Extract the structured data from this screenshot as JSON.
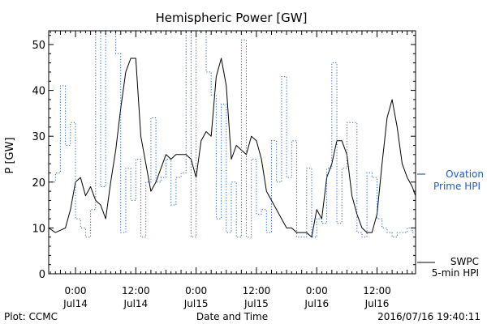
{
  "chart_data": {
    "type": "line",
    "title": "Hemispheric Power [GW]",
    "xlabel": "Date and Time",
    "ylabel": "P [GW]",
    "ylim": [
      0,
      53
    ],
    "xlim": [
      "2016-07-13 18:40",
      "2016-07-16 19:40"
    ],
    "yticks": [
      0,
      10,
      20,
      30,
      40,
      50
    ],
    "xticks": [
      {
        "at": "2016-07-14 00:00",
        "time": "0:00",
        "date": "Jul14"
      },
      {
        "at": "2016-07-14 12:00",
        "time": "12:00",
        "date": "Jul14"
      },
      {
        "at": "2016-07-15 00:00",
        "time": "0:00",
        "date": "Jul15"
      },
      {
        "at": "2016-07-15 12:00",
        "time": "12:00",
        "date": "Jul15"
      },
      {
        "at": "2016-07-16 00:00",
        "time": "0:00",
        "date": "Jul16"
      },
      {
        "at": "2016-07-16 12:00",
        "time": "12:00",
        "date": "Jul16"
      }
    ],
    "grid": false,
    "series": [
      {
        "name": "SWPC 5-min HPI",
        "style": "solid",
        "color": "#000000",
        "x": [
          "2016-07-13 18:40",
          "2016-07-13 20:00",
          "2016-07-13 22:00",
          "2016-07-13 23:00",
          "2016-07-14 00:00",
          "2016-07-14 01:00",
          "2016-07-14 02:00",
          "2016-07-14 03:00",
          "2016-07-14 04:00",
          "2016-07-14 05:00",
          "2016-07-14 06:00",
          "2016-07-14 07:00",
          "2016-07-14 08:00",
          "2016-07-14 09:00",
          "2016-07-14 10:00",
          "2016-07-14 11:00",
          "2016-07-14 12:00",
          "2016-07-14 13:00",
          "2016-07-14 14:00",
          "2016-07-14 15:00",
          "2016-07-14 16:00",
          "2016-07-14 17:00",
          "2016-07-14 18:00",
          "2016-07-14 19:00",
          "2016-07-14 20:00",
          "2016-07-14 21:00",
          "2016-07-14 22:00",
          "2016-07-14 23:00",
          "2016-07-15 00:00",
          "2016-07-15 01:00",
          "2016-07-15 02:00",
          "2016-07-15 03:00",
          "2016-07-15 04:00",
          "2016-07-15 05:00",
          "2016-07-15 06:00",
          "2016-07-15 07:00",
          "2016-07-15 08:00",
          "2016-07-15 09:00",
          "2016-07-15 10:00",
          "2016-07-15 11:00",
          "2016-07-15 12:00",
          "2016-07-15 13:00",
          "2016-07-15 14:00",
          "2016-07-15 15:00",
          "2016-07-15 16:00",
          "2016-07-15 17:00",
          "2016-07-15 18:00",
          "2016-07-15 19:00",
          "2016-07-15 20:00",
          "2016-07-15 21:00",
          "2016-07-15 22:00",
          "2016-07-15 23:00",
          "2016-07-16 00:00",
          "2016-07-16 01:00",
          "2016-07-16 02:00",
          "2016-07-16 03:00",
          "2016-07-16 04:00",
          "2016-07-16 05:00",
          "2016-07-16 06:00",
          "2016-07-16 07:00",
          "2016-07-16 08:00",
          "2016-07-16 09:00",
          "2016-07-16 10:00",
          "2016-07-16 11:00",
          "2016-07-16 12:00",
          "2016-07-16 13:00",
          "2016-07-16 14:00",
          "2016-07-16 15:00",
          "2016-07-16 16:00",
          "2016-07-16 17:00",
          "2016-07-16 18:00",
          "2016-07-16 19:00",
          "2016-07-16 19:40"
        ],
        "values": [
          10,
          9,
          10,
          14,
          20,
          21,
          17,
          19,
          16,
          15,
          12,
          20,
          27,
          36,
          44,
          47,
          47,
          30,
          24,
          18,
          20,
          23,
          26,
          25,
          26,
          26,
          26,
          25,
          21,
          29,
          31,
          30,
          43,
          47,
          41,
          25,
          28,
          27,
          26,
          30,
          29,
          25,
          18,
          16,
          14,
          12,
          10,
          10,
          9,
          9,
          9,
          8,
          14,
          12,
          21,
          24,
          29,
          29,
          26,
          17,
          13,
          10,
          9,
          9,
          13,
          24,
          34,
          38,
          32,
          24,
          21,
          19,
          17
        ]
      },
      {
        "name": "Ovation Prime HPI",
        "style": "dotted-step",
        "color": "#1f5fbf",
        "x": [
          "2016-07-13 18:40",
          "2016-07-13 20:00",
          "2016-07-13 21:00",
          "2016-07-13 22:00",
          "2016-07-13 23:00",
          "2016-07-14 00:00",
          "2016-07-14 01:00",
          "2016-07-14 02:00",
          "2016-07-14 03:00",
          "2016-07-14 04:00",
          "2016-07-14 05:00",
          "2016-07-14 06:00",
          "2016-07-14 07:00",
          "2016-07-14 08:00",
          "2016-07-14 09:00",
          "2016-07-14 10:00",
          "2016-07-14 11:00",
          "2016-07-14 12:00",
          "2016-07-14 13:00",
          "2016-07-14 14:00",
          "2016-07-14 15:00",
          "2016-07-14 16:00",
          "2016-07-14 17:00",
          "2016-07-14 18:00",
          "2016-07-14 19:00",
          "2016-07-14 20:00",
          "2016-07-14 21:00",
          "2016-07-14 22:00",
          "2016-07-14 23:00",
          "2016-07-15 00:00",
          "2016-07-15 01:00",
          "2016-07-15 02:00",
          "2016-07-15 03:00",
          "2016-07-15 04:00",
          "2016-07-15 05:00",
          "2016-07-15 06:00",
          "2016-07-15 07:00",
          "2016-07-15 08:00",
          "2016-07-15 09:00",
          "2016-07-15 10:00",
          "2016-07-15 11:00",
          "2016-07-15 12:00",
          "2016-07-15 13:00",
          "2016-07-15 14:00",
          "2016-07-15 15:00",
          "2016-07-15 16:00",
          "2016-07-15 17:00",
          "2016-07-15 18:00",
          "2016-07-15 19:00",
          "2016-07-15 20:00",
          "2016-07-15 21:00",
          "2016-07-15 22:00",
          "2016-07-15 23:00",
          "2016-07-16 00:00",
          "2016-07-16 01:00",
          "2016-07-16 02:00",
          "2016-07-16 03:00",
          "2016-07-16 04:00",
          "2016-07-16 05:00",
          "2016-07-16 06:00",
          "2016-07-16 07:00",
          "2016-07-16 08:00",
          "2016-07-16 09:00",
          "2016-07-16 10:00",
          "2016-07-16 11:00",
          "2016-07-16 12:00",
          "2016-07-16 13:00",
          "2016-07-16 14:00",
          "2016-07-16 15:00",
          "2016-07-16 16:00",
          "2016-07-16 17:00",
          "2016-07-16 18:00",
          "2016-07-16 19:00"
        ],
        "values": [
          20,
          22,
          41,
          28,
          33,
          12,
          10,
          8,
          14,
          53,
          19,
          53,
          53,
          48,
          9,
          23,
          16,
          25,
          8,
          20,
          34,
          20,
          21,
          25,
          15,
          21,
          22,
          53,
          8,
          53,
          53,
          44,
          39,
          12,
          37,
          9,
          20,
          8,
          51,
          8,
          25,
          13,
          14,
          9,
          29,
          20,
          43,
          21,
          29,
          8,
          8,
          23,
          8,
          12,
          11,
          23,
          46,
          11,
          23,
          33,
          33,
          9,
          8,
          22,
          21,
          12,
          10,
          9,
          8,
          9,
          9,
          10,
          9
        ]
      }
    ],
    "legend": {
      "placement": "right",
      "ovation_line1": "Ovation",
      "ovation_line2": "Prime HPI",
      "swpc_line1": "SWPC",
      "swpc_line2": "5-min HPI"
    },
    "footer": {
      "left": "Plot: CCMC",
      "right": "2016/07/16 19:40:11"
    },
    "colors": {
      "axis": "#000000",
      "swpc": "#000000",
      "ovation": "#1f5fbf"
    }
  }
}
